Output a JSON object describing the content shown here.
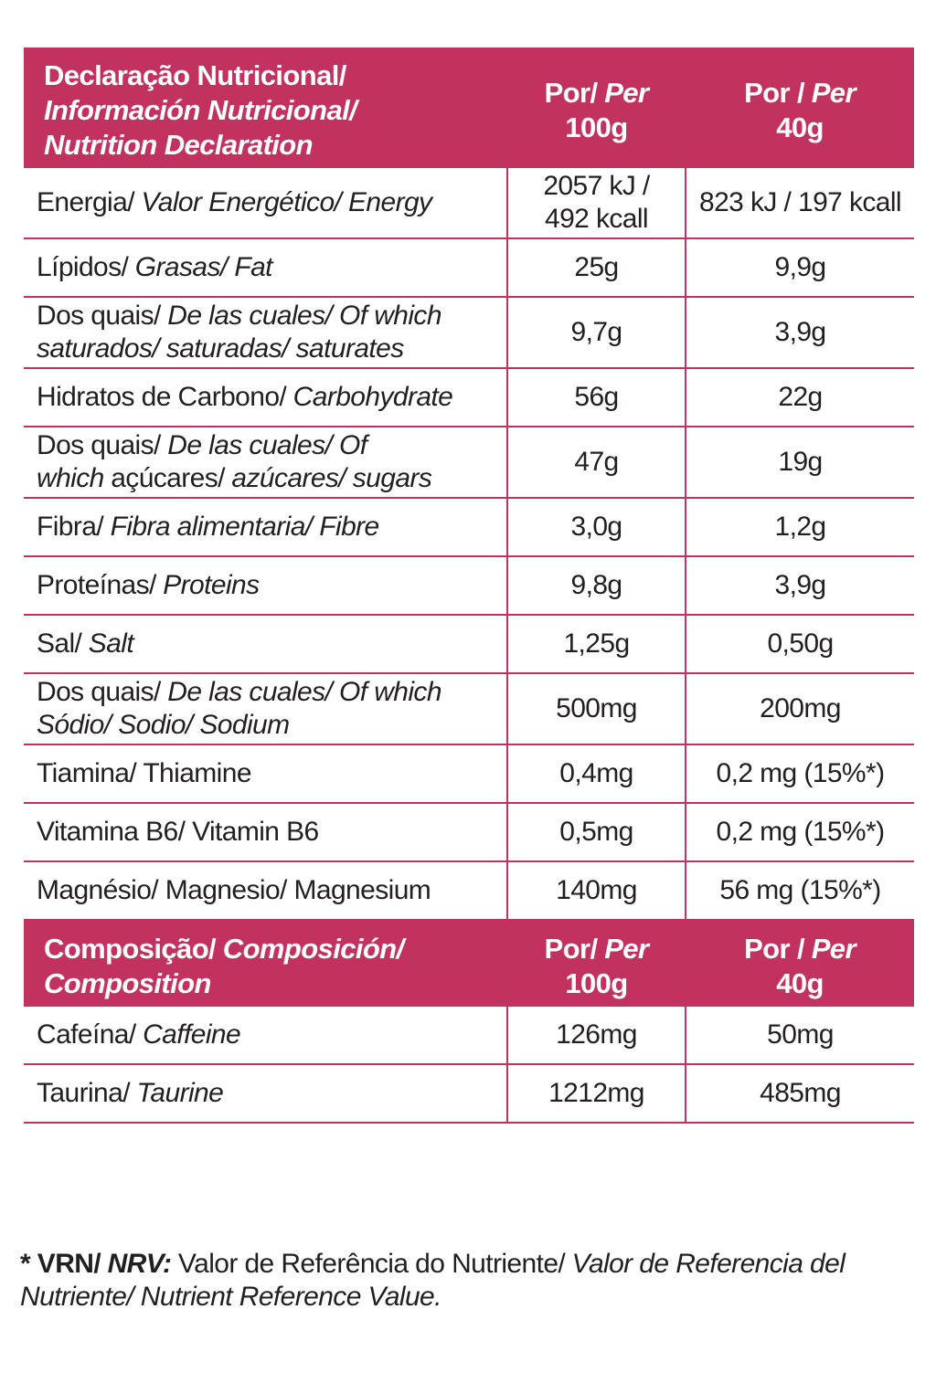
{
  "nutrition_table": {
    "header": {
      "title": {
        "normal": "Declaração Nutricional/",
        "italic": "Información Nutricional/ Nutrition Declaration"
      },
      "col1": {
        "normal": "Por/",
        "italic": "Per",
        "amount": "100g"
      },
      "col2": {
        "normal": "Por /",
        "italic": "Per",
        "amount": "40g"
      }
    },
    "rows": [
      {
        "label": {
          "normal": "Energia/",
          "italic": "Valor Energético/ Energy"
        },
        "per_100g": "2057 kJ / 492 kcall",
        "per_40g": "823 kJ / 197 kcall"
      },
      {
        "label": {
          "normal": "Lípidos/",
          "italic": "Grasas/ Fat"
        },
        "per_100g": "25g",
        "per_40g": "9,9g"
      },
      {
        "label": {
          "normal": "Dos quais/",
          "italic": "De las cuales/ Of which saturados/ saturadas/ saturates"
        },
        "per_100g": "9,7g",
        "per_40g": "3,9g"
      },
      {
        "label": {
          "normal": "Hidratos de Carbono/",
          "italic": "Carbohydrate"
        },
        "per_100g": "56g",
        "per_40g": "22g"
      },
      {
        "label": {
          "normal": "Dos quais/",
          "italic": "De las cuales/ Of which",
          "normal2": "açúcares/",
          "italic2": "azúcares/ sugars"
        },
        "per_100g": "47g",
        "per_40g": "19g"
      },
      {
        "label": {
          "normal": "Fibra/",
          "italic": "Fibra alimentaria/ Fibre"
        },
        "per_100g": "3,0g",
        "per_40g": "1,2g"
      },
      {
        "label": {
          "normal": "Proteínas/",
          "italic": "Proteins"
        },
        "per_100g": "9,8g",
        "per_40g": "3,9g"
      },
      {
        "label": {
          "normal": "Sal/",
          "italic": "Salt"
        },
        "per_100g": "1,25g",
        "per_40g": "0,50g"
      },
      {
        "label": {
          "normal": "Dos quais/",
          "italic": "De las cuales/ Of which Sódio/ Sodio/ Sodium"
        },
        "per_100g": "500mg",
        "per_40g": "200mg"
      },
      {
        "label": {
          "normal": "Tiamina/ Thiamine"
        },
        "per_100g": "0,4mg",
        "per_40g": "0,2 mg (15%*)"
      },
      {
        "label": {
          "normal": "Vitamina B6/ Vitamin B6"
        },
        "per_100g": "0,5mg",
        "per_40g": "0,2 mg (15%*)"
      },
      {
        "label": {
          "normal": "Magnésio/ Magnesio/ Magnesium"
        },
        "per_100g": "140mg",
        "per_40g": "56 mg (15%*)"
      }
    ]
  },
  "composition_table": {
    "header": {
      "title": {
        "normal": "Composição/",
        "italic": "Composición/ Composition"
      },
      "col1": {
        "normal": "Por/",
        "italic": "Per",
        "amount": "100g"
      },
      "col2": {
        "normal": "Por /",
        "italic": "Per",
        "amount": "40g"
      }
    },
    "rows": [
      {
        "label": {
          "normal": "Cafeína/",
          "italic": "Caffeine"
        },
        "per_100g": "126mg",
        "per_40g": "50mg"
      },
      {
        "label": {
          "normal": "Taurina/",
          "italic": "Taurine"
        },
        "per_100g": "1212mg",
        "per_40g": "485mg"
      }
    ]
  },
  "footnote": {
    "bold": "* VRN/",
    "bold_italic": "NRV:",
    "normal": "Valor de Referência do Nutriente/",
    "italic": "Valor de Referencia del Nutriente/ Nutrient Reference Value."
  }
}
